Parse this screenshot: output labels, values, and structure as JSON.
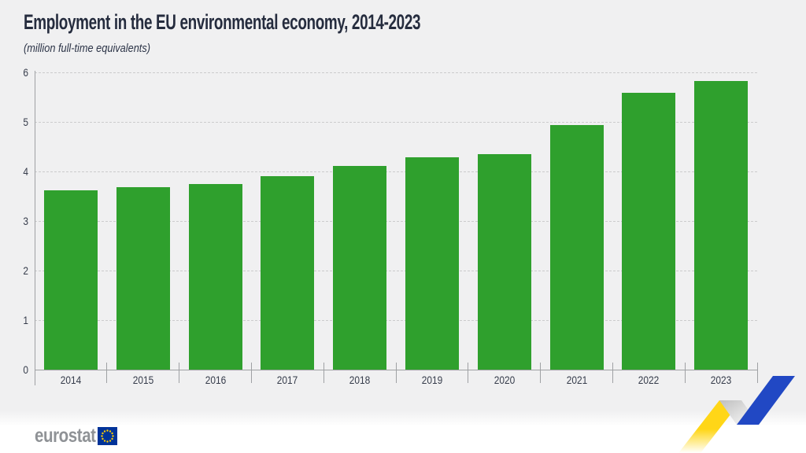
{
  "header": {
    "title": "Employment in the EU environmental economy, 2014-2023",
    "subtitle": "(million full-time equivalents)"
  },
  "chart_data": {
    "type": "bar",
    "title": "Employment in the EU environmental economy, 2014-2023",
    "subtitle": "(million full-time equivalents)",
    "categories": [
      "2014",
      "2015",
      "2016",
      "2017",
      "2018",
      "2019",
      "2020",
      "2021",
      "2022",
      "2023"
    ],
    "values": [
      3.62,
      3.68,
      3.75,
      3.9,
      4.11,
      4.29,
      4.35,
      4.94,
      5.59,
      5.83
    ],
    "xlabel": "",
    "ylabel": "(million full-time equivalents)",
    "ylim": [
      0,
      6
    ],
    "ytick_interval": 1,
    "yticks": [
      0,
      1,
      2,
      3,
      4,
      5,
      6
    ],
    "grid": "horizontal-dashed",
    "legend": "none",
    "bar_color": "#2fa02d"
  },
  "footer": {
    "logo_text": "eurostat",
    "logo_flag_icon": "eu-flag-icon",
    "decoration_icon": "zigzag-trend-ribbon"
  },
  "colors": {
    "background": "#f0f0f1",
    "bar_green": "#2fa02d",
    "title_navy": "#252c3e",
    "axis_gray": "#9fa1a4",
    "gridline_gray": "#cbcbcc",
    "logo_gray": "#8f9296",
    "eu_flag_blue": "#003399",
    "eu_star_yellow": "#ffcc00",
    "ribbon_yellow": "#ffd617",
    "ribbon_blue": "#2148c4"
  }
}
